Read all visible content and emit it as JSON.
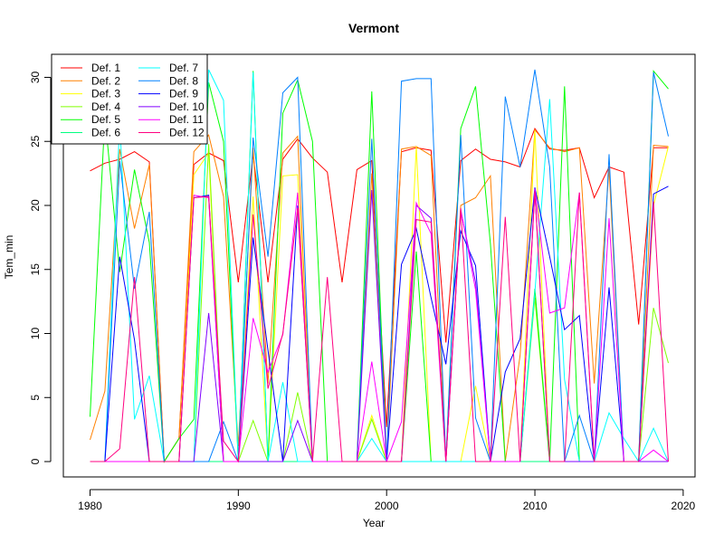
{
  "chart_data": {
    "type": "line",
    "title": "Vermont",
    "xlabel": "Year",
    "ylabel": "Tem_min",
    "xlim": [
      1978.2,
      2020.8
    ],
    "ylim": [
      -1.2,
      31.8
    ],
    "xticks": [
      1980,
      1990,
      2000,
      2010,
      2020
    ],
    "yticks": [
      0,
      5,
      10,
      15,
      20,
      25,
      30
    ],
    "grid": false,
    "legend_position": "top-left",
    "x": [
      1980,
      1981,
      1982,
      1983,
      1984,
      1985,
      1986,
      1987,
      1988,
      1989,
      1990,
      1991,
      1992,
      1993,
      1994,
      1995,
      1996,
      1997,
      1998,
      1999,
      2000,
      2001,
      2002,
      2003,
      2004,
      2005,
      2006,
      2007,
      2008,
      2009,
      2010,
      2011,
      2012,
      2013,
      2014,
      2015,
      2016,
      2017,
      2018,
      2019
    ],
    "series": [
      {
        "name": "Def. 1",
        "color": "#FF0000",
        "values": [
          22.7,
          23.3,
          23.6,
          24.2,
          23.4,
          0,
          1.8,
          23.2,
          24.1,
          23.5,
          14.0,
          24.0,
          14.0,
          23.6,
          25.2,
          23.7,
          22.6,
          14.0,
          22.8,
          23.5,
          2.7,
          24.2,
          24.5,
          24.3,
          9.3,
          23.5,
          24.4,
          23.6,
          23.4,
          23.0,
          26.0,
          24.4,
          24.3,
          24.5,
          20.6,
          23.0,
          22.6,
          10.7,
          24.5,
          24.5
        ]
      },
      {
        "name": "Def. 2",
        "color": "#FF8000",
        "values": [
          1.7,
          5.5,
          24.4,
          18.2,
          23.2,
          0,
          1.8,
          24.2,
          25.5,
          20.7,
          1.2,
          24.5,
          6.1,
          24.1,
          25.4,
          0,
          0,
          0,
          0,
          22.5,
          0,
          24.4,
          24.6,
          23.9,
          0,
          20.0,
          20.6,
          22.3,
          0,
          8.3,
          25.9,
          24.5,
          24.2,
          24.5,
          6.1,
          22.9,
          0,
          0,
          24.7,
          24.6
        ]
      },
      {
        "name": "Def. 3",
        "color": "#FFFF00",
        "values": [
          0,
          0,
          0,
          0,
          0,
          0,
          0,
          22.4,
          24.1,
          0,
          0,
          20.7,
          0,
          22.3,
          22.4,
          0,
          0,
          0,
          0,
          3.6,
          0,
          0,
          24.6,
          0,
          0,
          0,
          5.9,
          0,
          0,
          0,
          25.9,
          0,
          0,
          0,
          0,
          0,
          0,
          0,
          20.0,
          24.6
        ]
      },
      {
        "name": "Def. 4",
        "color": "#80FF00",
        "values": [
          0,
          0,
          0,
          0,
          0,
          0,
          0,
          0,
          24.8,
          0,
          0,
          3.2,
          0,
          0,
          5.4,
          0,
          0,
          0,
          0,
          3.3,
          0,
          0,
          0,
          0,
          0,
          0,
          0,
          0,
          0,
          0,
          12.8,
          0,
          0,
          0,
          0,
          0,
          0,
          0,
          12.0,
          7.7
        ]
      },
      {
        "name": "Def. 5",
        "color": "#00FF00",
        "values": [
          3.5,
          27.0,
          14.8,
          22.8,
          17.1,
          0,
          1.8,
          3.3,
          29.6,
          25.0,
          0,
          30.5,
          0,
          27.2,
          29.8,
          25.0,
          0,
          0,
          0,
          28.9,
          0,
          0,
          16.4,
          0,
          0,
          26.0,
          29.3,
          17.0,
          0,
          0,
          13.5,
          0,
          29.3,
          0,
          0,
          0,
          0,
          0,
          30.5,
          29.1
        ]
      },
      {
        "name": "Def. 6",
        "color": "#00FF80",
        "values": [
          0,
          0,
          0,
          0,
          0,
          0,
          0,
          0,
          0,
          0,
          0,
          0,
          0,
          0,
          0,
          0,
          0,
          0,
          0,
          0,
          0,
          0,
          0,
          0,
          0,
          0,
          0,
          0,
          0,
          0,
          0,
          0,
          0,
          0,
          0,
          0,
          0,
          0,
          0,
          0
        ]
      },
      {
        "name": "Def. 7",
        "color": "#00FFFF",
        "values": [
          0,
          0,
          26.5,
          3.3,
          6.7,
          0,
          0,
          0,
          30.6,
          28.2,
          0,
          30.4,
          0,
          6.2,
          0,
          0,
          0,
          0,
          0,
          1.8,
          0,
          0,
          0,
          0,
          0,
          0,
          0,
          0,
          0,
          0,
          13.2,
          28.3,
          6.4,
          0,
          0,
          3.8,
          1.8,
          0,
          2.6,
          0
        ]
      },
      {
        "name": "Def. 8",
        "color": "#0080FF",
        "values": [
          0,
          0,
          23.5,
          13.5,
          19.5,
          0,
          0,
          0,
          0,
          3.1,
          0,
          25.3,
          16.0,
          28.8,
          30.0,
          0,
          0,
          0,
          0,
          25.2,
          0,
          29.7,
          29.9,
          29.9,
          0,
          25.5,
          3.4,
          0,
          28.5,
          23.0,
          30.6,
          23.0,
          0,
          3.6,
          0,
          24.0,
          0,
          0,
          30.4,
          25.4
        ]
      },
      {
        "name": "Def. 9",
        "color": "#0000FF",
        "values": [
          0,
          0,
          16.0,
          9.5,
          0,
          0,
          0,
          20.6,
          20.8,
          0,
          0,
          17.5,
          8.7,
          0,
          20.0,
          0,
          0,
          0,
          0,
          0,
          0,
          15.4,
          18.2,
          12.8,
          7.6,
          18.0,
          15.3,
          0,
          7.0,
          9.6,
          21.4,
          16.0,
          10.3,
          11.4,
          0,
          13.6,
          0,
          0,
          20.9,
          21.5
        ]
      },
      {
        "name": "Def. 10",
        "color": "#8000FF",
        "values": [
          0,
          0,
          0,
          0,
          0,
          0,
          0,
          0,
          11.6,
          0,
          0,
          0,
          0,
          0,
          3.2,
          0,
          0,
          0,
          0,
          21.2,
          0,
          0,
          20.0,
          19.0,
          0,
          19.6,
          14.0,
          0,
          0,
          0,
          21.2,
          0,
          0,
          0,
          0,
          0,
          0,
          0,
          0,
          0
        ]
      },
      {
        "name": "Def. 11",
        "color": "#FF00FF",
        "values": [
          0,
          0,
          0,
          0,
          0,
          0,
          0,
          20.8,
          20.6,
          0,
          0,
          11.2,
          7.0,
          9.9,
          21.0,
          0,
          0,
          0,
          0,
          7.8,
          0,
          3.1,
          20.2,
          17.8,
          0,
          19.7,
          13.4,
          0,
          0,
          0,
          21.3,
          11.6,
          12.0,
          21.0,
          0,
          19.0,
          0,
          0,
          0.9,
          0
        ]
      },
      {
        "name": "Def. 12",
        "color": "#FF0080",
        "values": [
          0,
          0,
          1.0,
          14.4,
          0,
          0,
          0,
          20.6,
          20.7,
          1.6,
          0,
          19.3,
          5.7,
          10.0,
          19.8,
          0,
          14.4,
          0,
          0,
          0,
          0,
          0,
          18.9,
          18.7,
          0,
          19.8,
          0,
          0,
          19.1,
          0,
          21.1,
          0,
          0,
          21.0,
          0,
          0,
          0,
          0,
          20.3,
          0
        ]
      }
    ]
  }
}
